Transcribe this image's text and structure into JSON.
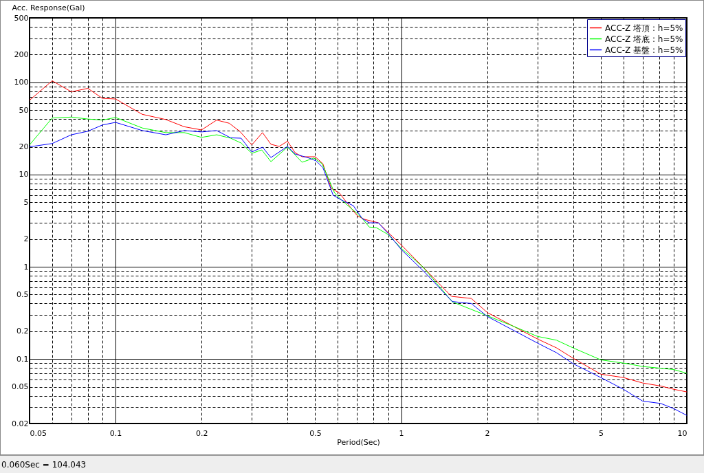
{
  "chart_data": {
    "type": "line",
    "ylabel": "Acc. Response(Gal)",
    "xlabel": "Period(Sec)",
    "log": "xy",
    "grid": true,
    "legend": "top right",
    "line_style": "solid",
    "marker": "none",
    "xlim": [
      0.05,
      10
    ],
    "ylim": [
      0.02,
      500
    ],
    "xticks": [
      0.05,
      {
        "value": 0.06,
        "label": null
      },
      {
        "value": 0.07,
        "label": null
      },
      {
        "value": 0.08,
        "label": null
      },
      {
        "value": 0.09,
        "label": null
      },
      0.1,
      0.2,
      {
        "value": 0.3,
        "label": null
      },
      {
        "value": 0.4,
        "label": null
      },
      0.5,
      {
        "value": 0.6,
        "label": null
      },
      {
        "value": 0.7,
        "label": null
      },
      {
        "value": 0.8,
        "label": null
      },
      {
        "value": 0.9,
        "label": null
      },
      1,
      2,
      {
        "value": 3,
        "label": null
      },
      {
        "value": 4,
        "label": null
      },
      5,
      {
        "value": 6,
        "label": null
      },
      {
        "value": 7,
        "label": null
      },
      {
        "value": 8,
        "label": null
      },
      {
        "value": 9,
        "label": null
      },
      10
    ],
    "yticks": [
      0.02,
      {
        "value": 0.03,
        "label": null
      },
      {
        "value": 0.04,
        "label": null
      },
      0.05,
      {
        "value": 0.06,
        "label": null
      },
      {
        "value": 0.07,
        "label": null
      },
      {
        "value": 0.08,
        "label": null
      },
      {
        "value": 0.09,
        "label": null
      },
      0.1,
      0.2,
      {
        "value": 0.3,
        "label": null
      },
      {
        "value": 0.4,
        "label": null
      },
      0.5,
      {
        "value": 0.6,
        "label": null
      },
      {
        "value": 0.7,
        "label": null
      },
      {
        "value": 0.8,
        "label": null
      },
      {
        "value": 0.9,
        "label": null
      },
      1,
      2,
      {
        "value": 3,
        "label": null
      },
      {
        "value": 4,
        "label": null
      },
      5,
      {
        "value": 6,
        "label": null
      },
      {
        "value": 7,
        "label": null
      },
      {
        "value": 8,
        "label": null
      },
      {
        "value": 9,
        "label": null
      },
      10,
      20,
      {
        "value": 30,
        "label": null
      },
      {
        "value": 40,
        "label": null
      },
      50,
      {
        "value": 60,
        "label": null
      },
      {
        "value": 70,
        "label": null
      },
      {
        "value": 80,
        "label": null
      },
      {
        "value": 90,
        "label": null
      },
      100,
      200,
      {
        "value": 300,
        "label": null
      },
      {
        "value": 400,
        "label": null
      },
      500
    ],
    "annotations": [
      "0.060Sec = 104.043"
    ],
    "series": [
      {
        "name": "ACC-Z 塔頂 : h=5%",
        "color": "#ff0000",
        "x": [
          0.05,
          0.06,
          0.07,
          0.08,
          0.09,
          0.1,
          0.124,
          0.15,
          0.174,
          0.2,
          0.226,
          0.25,
          0.272,
          0.3,
          0.327,
          0.35,
          0.374,
          0.4,
          0.425,
          0.45,
          0.5,
          0.532,
          0.569,
          0.608,
          0.654,
          0.703,
          0.744,
          0.832,
          0.9,
          1.0,
          1.21,
          1.5,
          1.76,
          2.0,
          3.0,
          3.5,
          4.0,
          5.0,
          6.0,
          7.0,
          8.1,
          9.0,
          10
        ],
        "values": [
          64,
          104,
          79,
          86,
          67,
          66,
          45,
          39.5,
          33,
          30.5,
          39,
          36,
          29.5,
          21,
          28.5,
          21.3,
          20.2,
          23,
          17.3,
          15.6,
          15.6,
          13.1,
          7.1,
          6.3,
          4.7,
          3.56,
          3.27,
          3.0,
          2.36,
          1.73,
          0.95,
          0.478,
          0.454,
          0.32,
          0.165,
          0.132,
          0.102,
          0.0685,
          0.063,
          0.055,
          0.051,
          0.047,
          0.044
        ]
      },
      {
        "name": "ACC-Z 塔底 : h=5%",
        "color": "#00ff00",
        "x": [
          0.05,
          0.06,
          0.07,
          0.08,
          0.09,
          0.1,
          0.124,
          0.15,
          0.174,
          0.2,
          0.226,
          0.253,
          0.275,
          0.3,
          0.325,
          0.35,
          0.4,
          0.45,
          0.495,
          0.529,
          0.562,
          0.585,
          0.618,
          0.69,
          0.731,
          0.773,
          0.818,
          0.9,
          1.0,
          1.19,
          1.51,
          2.0,
          2.46,
          3.0,
          3.5,
          4.0,
          5.0,
          6.2,
          7.0,
          9.0,
          10
        ],
        "values": [
          21,
          41,
          42,
          40,
          39,
          41.6,
          32,
          28.5,
          28.5,
          25.3,
          27,
          24.8,
          22,
          17,
          18.5,
          13.8,
          19.9,
          13.6,
          15.1,
          13.1,
          8.4,
          6.3,
          5.3,
          3.95,
          3.33,
          2.7,
          2.66,
          2.24,
          1.59,
          1.0,
          0.417,
          0.295,
          0.228,
          0.176,
          0.16,
          0.132,
          0.098,
          0.089,
          0.083,
          0.077,
          0.07
        ]
      },
      {
        "name": "ACC-Z 基盤 : h=5%",
        "color": "#0000ff",
        "x": [
          0.05,
          0.06,
          0.07,
          0.08,
          0.09,
          0.1,
          0.124,
          0.15,
          0.174,
          0.2,
          0.226,
          0.253,
          0.275,
          0.3,
          0.327,
          0.35,
          0.4,
          0.425,
          0.476,
          0.503,
          0.532,
          0.559,
          0.578,
          0.618,
          0.68,
          0.731,
          0.773,
          0.832,
          0.9,
          1.0,
          1.21,
          1.51,
          1.76,
          2.0,
          3.0,
          3.5,
          4.0,
          5.0,
          6.0,
          7.0,
          8.1,
          9.0,
          10
        ],
        "values": [
          20,
          21.7,
          27,
          29.5,
          34.5,
          36.8,
          30,
          27,
          30,
          29,
          30,
          25,
          24.8,
          17.6,
          19.8,
          15.3,
          20.2,
          16.7,
          15.1,
          14.1,
          11.9,
          7.9,
          5.97,
          5.3,
          4.6,
          3.33,
          3.0,
          3.0,
          2.3,
          1.54,
          0.87,
          0.42,
          0.4,
          0.29,
          0.149,
          0.117,
          0.089,
          0.063,
          0.047,
          0.035,
          0.033,
          0.029,
          0.0245
        ]
      }
    ]
  }
}
